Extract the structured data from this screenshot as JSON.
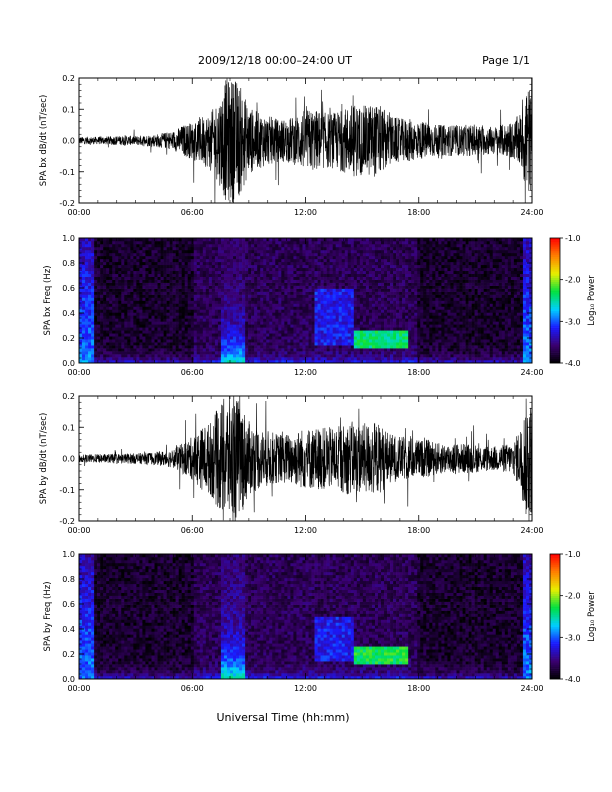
{
  "header": {
    "title": "2009/12/18   00:00–24:00 UT",
    "page_label": "Page 1/1"
  },
  "footer": {
    "xlabel": "Universal Time (hh:mm)"
  },
  "chart_data": [
    {
      "type": "line",
      "ylabel": "SPA bx dB/dt (nT/sec)",
      "xlabel": "",
      "x_ticks": [
        "00:00",
        "06:00",
        "12:00",
        "18:00",
        "24:00"
      ],
      "xlim": [
        0,
        24
      ],
      "ylim": [
        -0.2,
        0.2
      ],
      "y_ticks": [
        "-0.2",
        "-0.1",
        "0.0",
        "0.1",
        "0.2"
      ],
      "y_tick_values": [
        -0.2,
        -0.1,
        0.0,
        0.1,
        0.2
      ],
      "series_color": "#000000",
      "envelope": {
        "hours": [
          0,
          1,
          2,
          3,
          4,
          5,
          5.5,
          6,
          6.5,
          7,
          7.5,
          7.8,
          8,
          8.3,
          8.6,
          9,
          9.5,
          10,
          10.5,
          11,
          11.5,
          12,
          12.5,
          13,
          13.5,
          14,
          14.5,
          15,
          15.5,
          16,
          16.5,
          17,
          17.5,
          18,
          18.5,
          19,
          20,
          21,
          22,
          23,
          23.5,
          23.7,
          24
        ],
        "amplitude": [
          0.012,
          0.012,
          0.015,
          0.015,
          0.02,
          0.03,
          0.05,
          0.06,
          0.08,
          0.09,
          0.15,
          0.2,
          0.2,
          0.2,
          0.17,
          0.11,
          0.09,
          0.08,
          0.07,
          0.07,
          0.08,
          0.1,
          0.1,
          0.09,
          0.09,
          0.1,
          0.12,
          0.11,
          0.12,
          0.11,
          0.08,
          0.07,
          0.07,
          0.06,
          0.06,
          0.05,
          0.05,
          0.05,
          0.045,
          0.06,
          0.1,
          0.2,
          0.15
        ]
      }
    },
    {
      "type": "heatmap",
      "ylabel": "SPA bx Freq (Hz)",
      "x_ticks": [
        "00:00",
        "06:00",
        "12:00",
        "18:00",
        "24:00"
      ],
      "xlim": [
        0,
        24
      ],
      "ylim": [
        0,
        1.0
      ],
      "y_ticks": [
        "0.0",
        "0.2",
        "0.4",
        "0.6",
        "0.8",
        "1.0"
      ],
      "y_tick_values": [
        0,
        0.2,
        0.4,
        0.6,
        0.8,
        1.0
      ],
      "colorbar": {
        "label": "Log₁₀ Power",
        "ticks": [
          "-1.0",
          "-2.0",
          "-3.0",
          "-4.0"
        ],
        "tick_values": [
          -1,
          -2,
          -3,
          -4
        ],
        "range": [
          -4,
          -1
        ],
        "colors": [
          "#000000",
          "#3a0070",
          "#1a1aff",
          "#00d0ff",
          "#00e040",
          "#e8f000",
          "#ff8000",
          "#ff0000"
        ]
      },
      "features": [
        {
          "hours": [
            7.5,
            8.8
          ],
          "freq_max": 1.0,
          "level": -2.6
        },
        {
          "hours": [
            12.5,
            14.5
          ],
          "freq_range": [
            0.15,
            0.6
          ],
          "level": -3.2
        },
        {
          "hours": [
            14.5,
            17.5
          ],
          "freq_range": [
            0.12,
            0.25
          ],
          "level": -2.4
        }
      ]
    },
    {
      "type": "line",
      "ylabel": "SPA by dB/dt (nT/sec)",
      "xlabel": "",
      "x_ticks": [
        "00:00",
        "06:00",
        "12:00",
        "18:00",
        "24:00"
      ],
      "xlim": [
        0,
        24
      ],
      "ylim": [
        -0.2,
        0.2
      ],
      "y_ticks": [
        "-0.2",
        "-0.1",
        "0.0",
        "0.1",
        "0.2"
      ],
      "y_tick_values": [
        -0.2,
        -0.1,
        0.0,
        0.1,
        0.2
      ],
      "series_color": "#000000",
      "envelope": {
        "hours": [
          0,
          1,
          2,
          3,
          4,
          5,
          5.5,
          6,
          6.5,
          7,
          7.5,
          7.8,
          8,
          8.3,
          8.6,
          9,
          9.5,
          10,
          10.5,
          11,
          11.5,
          12,
          12.5,
          13,
          13.5,
          14,
          14.5,
          15,
          15.5,
          16,
          16.5,
          17,
          17.5,
          18,
          18.5,
          19,
          20,
          21,
          22,
          23,
          23.5,
          23.7,
          24
        ],
        "amplitude": [
          0.012,
          0.014,
          0.015,
          0.017,
          0.02,
          0.03,
          0.05,
          0.07,
          0.1,
          0.12,
          0.18,
          0.2,
          0.2,
          0.2,
          0.18,
          0.12,
          0.1,
          0.09,
          0.08,
          0.08,
          0.09,
          0.1,
          0.1,
          0.1,
          0.1,
          0.11,
          0.12,
          0.11,
          0.12,
          0.11,
          0.08,
          0.07,
          0.07,
          0.06,
          0.06,
          0.05,
          0.05,
          0.045,
          0.04,
          0.05,
          0.12,
          0.2,
          0.18
        ]
      }
    },
    {
      "type": "heatmap",
      "ylabel": "SPA by Freq (Hz)",
      "x_ticks": [
        "00:00",
        "06:00",
        "12:00",
        "18:00",
        "24:00"
      ],
      "xlim": [
        0,
        24
      ],
      "ylim": [
        0,
        1.0
      ],
      "y_ticks": [
        "0.0",
        "0.2",
        "0.4",
        "0.6",
        "0.8",
        "1.0"
      ],
      "y_tick_values": [
        0,
        0.2,
        0.4,
        0.6,
        0.8,
        1.0
      ],
      "colorbar": {
        "label": "Log₁₀ Power",
        "ticks": [
          "-1.0",
          "-2.0",
          "-3.0",
          "-4.0"
        ],
        "tick_values": [
          -1,
          -2,
          -3,
          -4
        ],
        "range": [
          -4,
          -1
        ],
        "colors": [
          "#000000",
          "#3a0070",
          "#1a1aff",
          "#00d0ff",
          "#00e040",
          "#e8f000",
          "#ff8000",
          "#ff0000"
        ]
      },
      "features": [
        {
          "hours": [
            7.5,
            8.8
          ],
          "freq_max": 1.0,
          "level": -2.5
        },
        {
          "hours": [
            12.5,
            14.5
          ],
          "freq_range": [
            0.15,
            0.5
          ],
          "level": -3.2
        },
        {
          "hours": [
            14.5,
            17.5
          ],
          "freq_range": [
            0.12,
            0.25
          ],
          "level": -2.3
        }
      ]
    }
  ]
}
